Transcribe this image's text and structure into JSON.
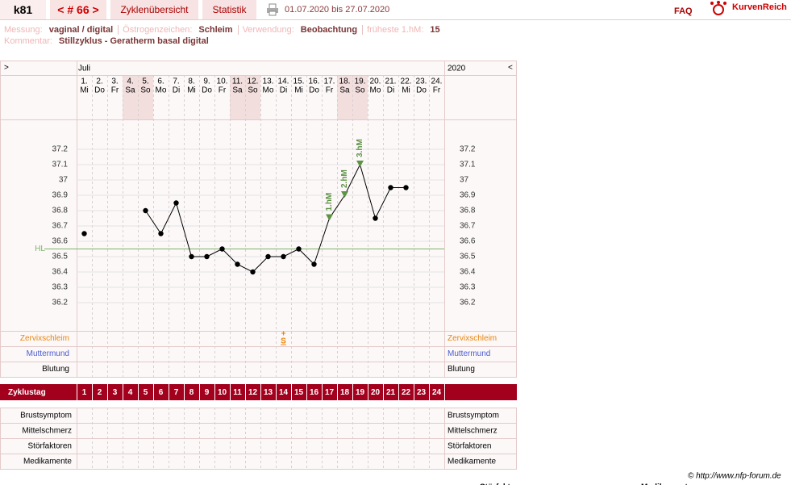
{
  "header": {
    "user": "k81",
    "cycle": "< # 66 >",
    "overview": "Zyklenübersicht",
    "stats": "Statistik",
    "period": "01.07.2020 bis 27.07.2020",
    "faq": "FAQ",
    "logo": "KurvenReich"
  },
  "info": {
    "fields": [
      {
        "label": "Messung:",
        "value": "vaginal / digital"
      },
      {
        "label": "Östrogenzeichen:",
        "value": "Schleim"
      },
      {
        "label": "Verwendung:",
        "value": "Beobachtung"
      },
      {
        "label": "früheste 1.hM:",
        "value": "15"
      }
    ],
    "comment_label": "Kommentar:",
    "comment": "Stillzyklus - Geratherm basal digital"
  },
  "chart_data": {
    "type": "line",
    "nav_left": ">",
    "nav_right": "<",
    "month": "Juli",
    "year": "2020",
    "categories": [
      "1.",
      "2.",
      "3.",
      "4.",
      "5.",
      "6.",
      "7.",
      "8.",
      "9.",
      "10.",
      "11.",
      "12.",
      "13.",
      "14.",
      "15.",
      "16.",
      "17.",
      "18.",
      "19.",
      "20.",
      "21.",
      "22.",
      "23.",
      "24."
    ],
    "weekdays": [
      "Mi",
      "Do",
      "Fr",
      "Sa",
      "So",
      "Mo",
      "Di",
      "Mi",
      "Do",
      "Fr",
      "Sa",
      "So",
      "Mo",
      "Di",
      "Mi",
      "Do",
      "Fr",
      "Sa",
      "So",
      "Mo",
      "Di",
      "Mi",
      "Do",
      "Fr"
    ],
    "weekend": [
      false,
      false,
      false,
      true,
      true,
      false,
      false,
      false,
      false,
      false,
      true,
      true,
      false,
      false,
      false,
      false,
      false,
      true,
      true,
      false,
      false,
      false,
      false,
      false
    ],
    "values": [
      36.65,
      null,
      null,
      null,
      36.8,
      36.65,
      36.85,
      36.5,
      36.5,
      36.55,
      36.45,
      36.4,
      36.5,
      36.5,
      36.55,
      36.45,
      36.75,
      36.9,
      37.1,
      36.75,
      36.95,
      36.95,
      null,
      null
    ],
    "color": "#000000",
    "ylim": [
      36.0,
      37.4
    ],
    "yticks": [
      36.2,
      36.3,
      36.4,
      36.5,
      36.6,
      36.7,
      36.8,
      36.9,
      37,
      37.1,
      37.2
    ],
    "grid": true,
    "cover_line": {
      "label": "HL",
      "value": 36.55,
      "color": "#7cb46a"
    },
    "annotations": [
      {
        "label": "1.hM",
        "day": 17
      },
      {
        "label": "2.hM",
        "day": 18
      },
      {
        "label": "3.hM",
        "day": 19
      }
    ],
    "annotation_color": "#5e9346"
  },
  "rows": {
    "top": [
      {
        "label": "Zervixschleim",
        "color": "#e8850c"
      },
      {
        "label": "Muttermund",
        "color": "#4b5bd0"
      },
      {
        "label": "Blutung",
        "color": "#000000"
      }
    ],
    "cycle_label": "Zyklustag",
    "cycle_days": [
      1,
      2,
      3,
      4,
      5,
      6,
      7,
      8,
      9,
      10,
      11,
      12,
      13,
      14,
      15,
      16,
      17,
      18,
      19,
      20,
      21,
      22,
      23,
      24
    ],
    "bottom": [
      "Brustsymptom",
      "Mittelschmerz",
      "Störfaktoren",
      "Medikamente"
    ]
  },
  "observations": [
    {
      "day": 14,
      "mark": "+",
      "text": "S"
    }
  ],
  "footer": {
    "copyright": "© http://www.nfp-forum.de",
    "cut": [
      "Störfaktoren",
      "Medikamente"
    ]
  }
}
